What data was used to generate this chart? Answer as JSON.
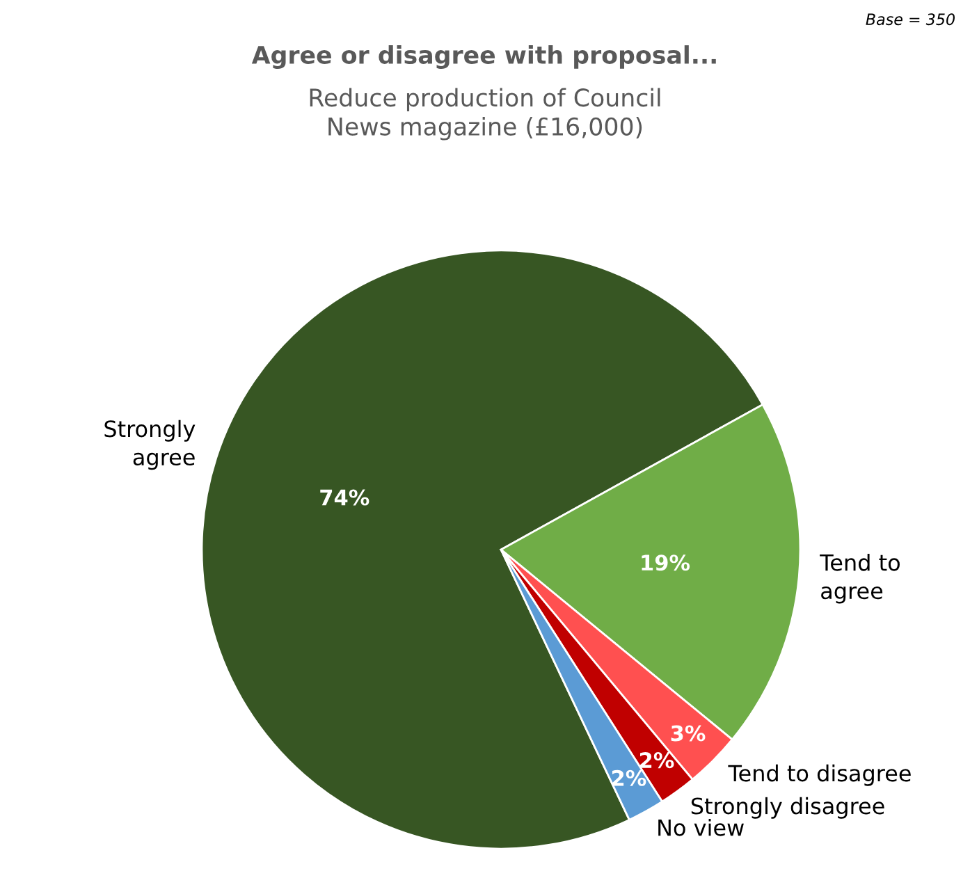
{
  "chart_data": {
    "type": "pie",
    "title": "Agree or disagree with proposal...",
    "subtitle": "Reduce production of Council\nNews magazine (£16,000)",
    "categories": [
      "Strongly agree",
      "Tend to agree",
      "Tend to disagree",
      "Strongly disagree",
      "No view"
    ],
    "values": [
      74,
      19,
      3,
      2,
      2
    ],
    "colors": [
      "#375623",
      "#70ad47",
      "#ff5050",
      "#c00000",
      "#5b9bd5"
    ],
    "value_labels": [
      "74%",
      "19%",
      "3%",
      "2%",
      "2%"
    ],
    "annotations": [
      "Base = 350"
    ],
    "legend": false
  }
}
